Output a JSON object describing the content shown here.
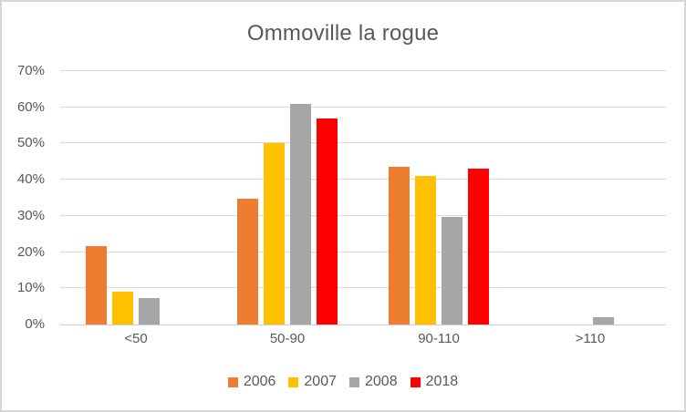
{
  "window": {
    "background": "#ffffff",
    "border_color": "#d6d6d6"
  },
  "chart_data": {
    "type": "bar",
    "title": "Ommoville la rogue",
    "title_color": "#595959",
    "text_color": "#595959",
    "gridline_color": "#d9d9d9",
    "axis_line_color": "#cfcfcf",
    "grid": true,
    "legend_position": "bottom",
    "xlabel": "",
    "ylabel": "",
    "ylim": [
      0,
      70
    ],
    "y_ticks": [
      {
        "value": 0,
        "label": "0%"
      },
      {
        "value": 10,
        "label": "10%"
      },
      {
        "value": 20,
        "label": "20%"
      },
      {
        "value": 30,
        "label": "30%"
      },
      {
        "value": 40,
        "label": "40%"
      },
      {
        "value": 50,
        "label": "50%"
      },
      {
        "value": 60,
        "label": "60%"
      },
      {
        "value": 70,
        "label": "70%"
      }
    ],
    "categories": [
      "<50",
      "50-90",
      "90-110",
      ">110"
    ],
    "series": [
      {
        "name": "2006",
        "color": "#ED7D31",
        "values": [
          21.7,
          34.8,
          43.5,
          0
        ]
      },
      {
        "name": "2007",
        "color": "#FFC000",
        "values": [
          9,
          50,
          41,
          0
        ]
      },
      {
        "name": "2008",
        "color": "#A6A6A6",
        "values": [
          7.3,
          60.9,
          29.7,
          2.1
        ]
      },
      {
        "name": "2018",
        "color": "#FF0000",
        "values": [
          0,
          57,
          43,
          0
        ]
      }
    ]
  }
}
